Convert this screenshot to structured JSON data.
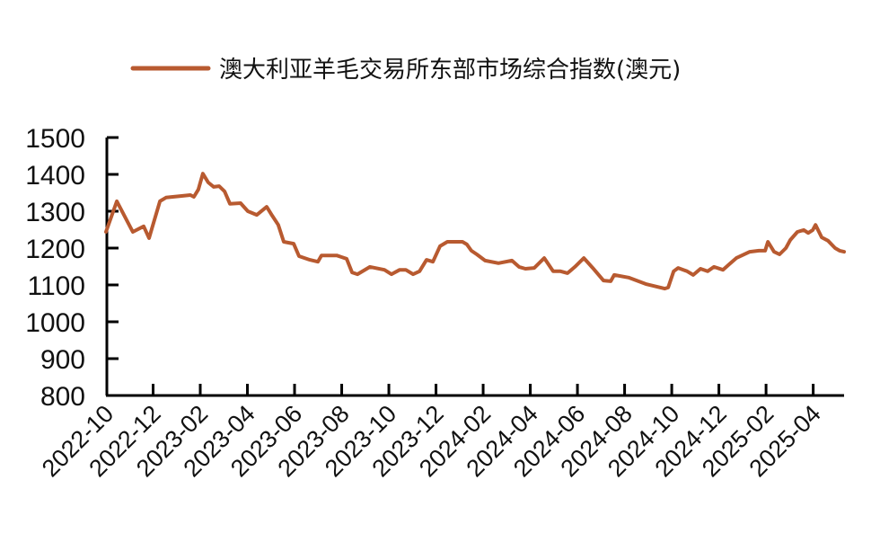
{
  "chart_data": {
    "type": "line",
    "title": "",
    "xlabel": "",
    "ylabel": "",
    "legend_position": "top",
    "grid": false,
    "ylim": [
      800,
      1500
    ],
    "yticks": [
      800,
      900,
      1000,
      1100,
      1200,
      1300,
      1400,
      1500
    ],
    "xtick_labels": [
      "2022-10",
      "2022-12",
      "2023-02",
      "2023-04",
      "2023-06",
      "2023-08",
      "2023-10",
      "2023-12",
      "2024-02",
      "2024-04",
      "2024-06",
      "2024-08",
      "2024-10",
      "2024-12",
      "2025-02",
      "2025-04"
    ],
    "x_unit": "months since 2022-10",
    "x_range_months": [
      0,
      31.31
    ],
    "series": [
      {
        "name": "澳大利亚羊毛交易所东部市场综合指数(澳元)",
        "color": "#B85A30",
        "x": [
          0.0,
          0.46,
          1.14,
          1.6,
          1.83,
          2.29,
          2.55,
          3.12,
          3.58,
          3.73,
          3.92,
          4.11,
          4.34,
          4.57,
          4.8,
          5.03,
          5.26,
          5.71,
          6.02,
          6.4,
          6.82,
          7.05,
          7.31,
          7.54,
          7.96,
          8.19,
          8.65,
          8.99,
          9.14,
          9.79,
          10.21,
          10.44,
          10.67,
          11.2,
          11.81,
          12.11,
          12.46,
          12.72,
          13.03,
          13.3,
          13.6,
          13.87,
          14.17,
          14.48,
          15.12,
          15.31,
          15.5,
          15.73,
          16.08,
          16.65,
          17.22,
          17.52,
          17.79,
          18.17,
          18.59,
          18.97,
          19.28,
          19.58,
          19.89,
          20.27,
          20.65,
          21.1,
          21.41,
          21.56,
          22.17,
          22.93,
          23.7,
          23.85,
          24.08,
          24.27,
          24.65,
          24.91,
          25.22,
          25.52,
          25.79,
          26.17,
          26.44,
          26.74,
          27.31,
          27.7,
          27.96,
          28.08,
          28.34,
          28.57,
          28.84,
          29.03,
          29.33,
          29.6,
          29.79,
          29.98,
          30.1,
          30.36,
          30.63,
          30.93,
          31.12,
          31.31
        ],
        "values": [
          1244,
          1327,
          1244,
          1259,
          1227,
          1327,
          1337,
          1341,
          1344,
          1339,
          1359,
          1402,
          1378,
          1366,
          1368,
          1354,
          1320,
          1322,
          1300,
          1290,
          1312,
          1288,
          1263,
          1217,
          1212,
          1178,
          1168,
          1163,
          1180,
          1180,
          1171,
          1134,
          1129,
          1149,
          1141,
          1129,
          1141,
          1141,
          1129,
          1137,
          1168,
          1163,
          1205,
          1217,
          1217,
          1210,
          1193,
          1183,
          1166,
          1159,
          1166,
          1149,
          1144,
          1146,
          1173,
          1137,
          1137,
          1132,
          1149,
          1173,
          1146,
          1112,
          1110,
          1127,
          1120,
          1102,
          1090,
          1093,
          1137,
          1146,
          1137,
          1127,
          1144,
          1137,
          1149,
          1141,
          1156,
          1173,
          1190,
          1193,
          1193,
          1217,
          1190,
          1183,
          1200,
          1222,
          1244,
          1249,
          1241,
          1249,
          1263,
          1229,
          1220,
          1200,
          1193,
          1190
        ]
      }
    ]
  },
  "legend": {
    "label": "澳大利亚羊毛交易所东部市场综合指数(澳元)",
    "color": "#B85A30"
  },
  "axes": {
    "color": "#000000"
  }
}
